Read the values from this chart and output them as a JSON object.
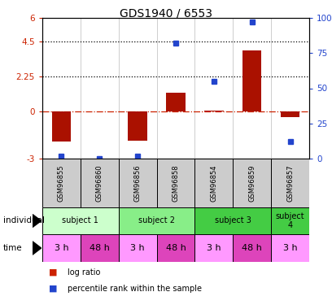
{
  "title": "GDS1940 / 6553",
  "samples": [
    "GSM96855",
    "GSM96860",
    "GSM96856",
    "GSM96858",
    "GSM96854",
    "GSM96859",
    "GSM96857"
  ],
  "log_ratios": [
    -1.9,
    0.0,
    -1.85,
    1.2,
    0.05,
    3.9,
    -0.35
  ],
  "percentile_ranks": [
    2,
    0,
    2,
    82,
    55,
    97,
    12
  ],
  "ylim_left": [
    -3,
    6
  ],
  "ylim_right": [
    0,
    100
  ],
  "yticks_left": [
    -3,
    0,
    2.25,
    4.5,
    6
  ],
  "yticks_right": [
    0,
    25,
    50,
    75,
    100
  ],
  "ytick_labels_left": [
    "-3",
    "0",
    "2.25",
    "4.5",
    "6"
  ],
  "ytick_labels_right": [
    "0",
    "25",
    "50",
    "75",
    "100%"
  ],
  "hlines": [
    {
      "y": 0,
      "color": "#cc2200",
      "linestyle": "-."
    },
    {
      "y": 2.25,
      "color": "black",
      "linestyle": ":"
    },
    {
      "y": 4.5,
      "color": "black",
      "linestyle": ":"
    }
  ],
  "bar_color": "#aa1100",
  "dot_color": "#2244cc",
  "individuals": [
    {
      "label": "subject 1",
      "start": 0,
      "end": 2,
      "color": "#ccffcc"
    },
    {
      "label": "subject 2",
      "start": 2,
      "end": 4,
      "color": "#88ee88"
    },
    {
      "label": "subject 3",
      "start": 4,
      "end": 6,
      "color": "#44cc44"
    },
    {
      "label": "subject\n4",
      "start": 6,
      "end": 7,
      "color": "#44cc44"
    }
  ],
  "times": [
    {
      "label": "3 h",
      "color": "#ff99ff"
    },
    {
      "label": "48 h",
      "color": "#dd44bb"
    },
    {
      "label": "3 h",
      "color": "#ff99ff"
    },
    {
      "label": "48 h",
      "color": "#dd44bb"
    },
    {
      "label": "3 h",
      "color": "#ff99ff"
    },
    {
      "label": "48 h",
      "color": "#dd44bb"
    },
    {
      "label": "3 h",
      "color": "#ff99ff"
    }
  ],
  "sample_box_color": "#cccccc",
  "legend_log_ratio_color": "#cc2200",
  "legend_percentile_color": "#2244cc"
}
